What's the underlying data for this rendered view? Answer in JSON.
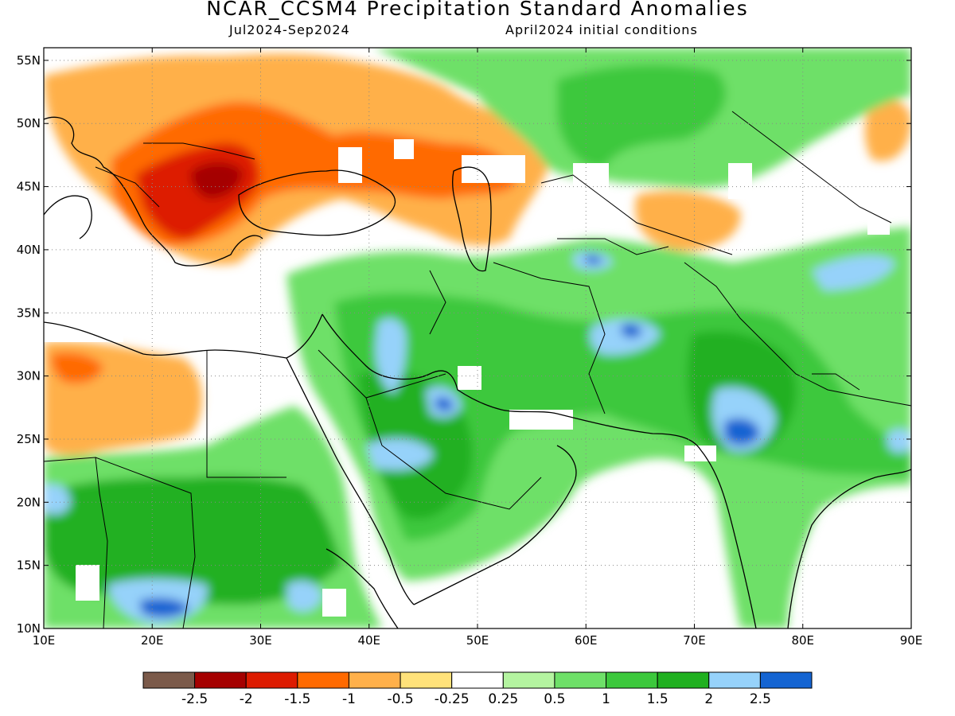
{
  "header": {
    "title": "NCAR_CCSM4 Precipitation Standard Anomalies",
    "period": "Jul2024-Sep2024",
    "init": "April2024 initial conditions"
  },
  "map": {
    "lon_range": [
      10,
      90
    ],
    "lat_range": [
      10,
      56
    ],
    "lat_ticks": [
      {
        "value": 55,
        "label": "55N"
      },
      {
        "value": 50,
        "label": "50N"
      },
      {
        "value": 45,
        "label": "45N"
      },
      {
        "value": 40,
        "label": "40N"
      },
      {
        "value": 35,
        "label": "35N"
      },
      {
        "value": 30,
        "label": "30N"
      },
      {
        "value": 25,
        "label": "25N"
      },
      {
        "value": 20,
        "label": "20N"
      },
      {
        "value": 15,
        "label": "15N"
      },
      {
        "value": 10,
        "label": "10N"
      }
    ],
    "lon_ticks": [
      {
        "value": 10,
        "label": "10E"
      },
      {
        "value": 20,
        "label": "20E"
      },
      {
        "value": 30,
        "label": "30E"
      },
      {
        "value": 40,
        "label": "40E"
      },
      {
        "value": 50,
        "label": "50E"
      },
      {
        "value": 60,
        "label": "60E"
      },
      {
        "value": 70,
        "label": "70E"
      },
      {
        "value": 80,
        "label": "80E"
      },
      {
        "value": 90,
        "label": "90E"
      }
    ],
    "grid": true
  },
  "colorbar": {
    "colors": [
      "#7b5a4a",
      "#a50000",
      "#dd1b00",
      "#ff6a00",
      "#ffb04a",
      "#ffe27a",
      "#ffffff",
      "#b4f4a0",
      "#6ee068",
      "#3cc83c",
      "#20b020",
      "#96d2fa",
      "#1464d2"
    ],
    "labels": [
      "-2.5",
      "-2",
      "-1.5",
      "-1",
      "-0.5",
      "-0.25",
      "0.25",
      "0.5",
      "1",
      "1.5",
      "2",
      "2.5"
    ]
  }
}
